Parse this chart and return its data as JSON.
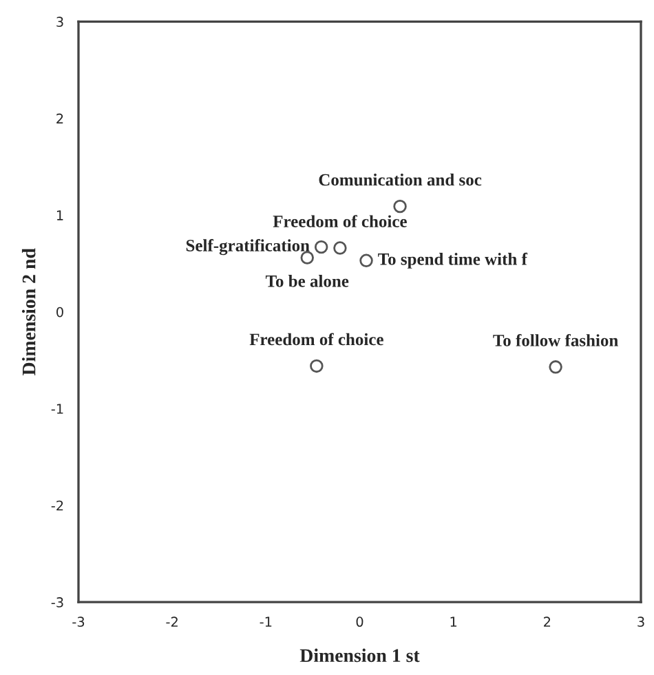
{
  "chart_data": {
    "type": "scatter",
    "xlabel": "Dimension 1 st",
    "ylabel": "Dimension 2 nd",
    "x": [
      0.43,
      -0.21,
      -0.41,
      -0.56,
      0.07,
      -0.46,
      2.09
    ],
    "values": [
      1.09,
      0.66,
      0.67,
      0.56,
      0.53,
      -0.56,
      -0.57
    ],
    "color": "#555555",
    "marker": "circle",
    "grid": false,
    "xlim": [
      -3,
      3
    ],
    "ylim": [
      -3,
      3
    ],
    "xticks": [
      -3,
      -2,
      -1,
      0,
      1,
      2,
      3
    ],
    "yticks": [
      -3,
      -2,
      -1,
      0,
      1,
      2,
      3
    ],
    "annotations": [
      {
        "text": "Comunication and soc",
        "x": 0.43,
        "y": 1.09
      },
      {
        "text": "Freedom of choice",
        "x": -0.21,
        "y": 0.66
      },
      {
        "text": "Self-gratification",
        "x": -0.41,
        "y": 0.67
      },
      {
        "text": "To be alone",
        "x": -0.56,
        "y": 0.56
      },
      {
        "text": "To spend time with f",
        "x": 0.07,
        "y": 0.53
      },
      {
        "text": "Freedom of choice",
        "x": -0.46,
        "y": -0.56
      },
      {
        "text": "To follow fashion",
        "x": 2.09,
        "y": -0.57
      }
    ]
  }
}
